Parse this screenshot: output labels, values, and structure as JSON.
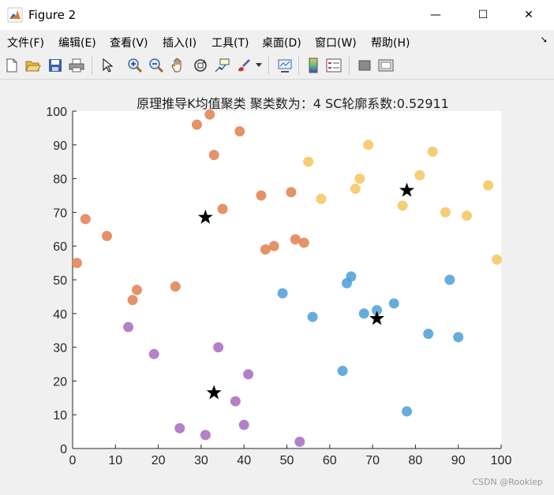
{
  "window": {
    "title": "Figure 2",
    "minimize": "—",
    "maximize": "☐",
    "close": "✕"
  },
  "menu": [
    "文件(F)",
    "编辑(E)",
    "查看(V)",
    "插入(I)",
    "工具(T)",
    "桌面(D)",
    "窗口(W)",
    "帮助(H)"
  ],
  "toolbar_icons": [
    "new-figure-icon",
    "open-file-icon",
    "save-icon",
    "print-icon",
    "pointer-icon",
    "zoom-in-icon",
    "zoom-out-icon",
    "pan-icon",
    "rotate-3d-icon",
    "data-cursor-icon",
    "brush-icon",
    "link-plot-icon",
    "colorbar-icon",
    "legend-icon",
    "hide-plot-tools-icon",
    "show-plot-tools-icon"
  ],
  "watermark": "CSDN @Rookiep",
  "colors": {
    "orange": "#e07f4f",
    "yellow": "#f2c75c",
    "blue": "#4a9fd6",
    "purple": "#a66bbd",
    "centroid": "#000000"
  },
  "chart_data": {
    "type": "scatter",
    "title": "原理推导K均值聚类  聚类数为：4  SC轮廓系数:0.52911",
    "xlim": [
      0,
      100
    ],
    "ylim": [
      0,
      100
    ],
    "xticks": [
      0,
      10,
      20,
      30,
      40,
      50,
      60,
      70,
      80,
      90,
      100
    ],
    "yticks": [
      0,
      10,
      20,
      30,
      40,
      50,
      60,
      70,
      80,
      90,
      100
    ],
    "grid": false,
    "series": [
      {
        "color": "#e07f4f",
        "points": [
          [
            32,
            99
          ],
          [
            29,
            96
          ],
          [
            39,
            94
          ],
          [
            33,
            87
          ],
          [
            51,
            76
          ],
          [
            44,
            75
          ],
          [
            35,
            71
          ],
          [
            3,
            68
          ],
          [
            8,
            63
          ],
          [
            52,
            62
          ],
          [
            54,
            61
          ],
          [
            47,
            60
          ],
          [
            45,
            59
          ],
          [
            1,
            55
          ],
          [
            24,
            48
          ],
          [
            15,
            47
          ],
          [
            14,
            44
          ]
        ]
      },
      {
        "color": "#f2c75c",
        "points": [
          [
            69,
            90
          ],
          [
            84,
            88
          ],
          [
            55,
            85
          ],
          [
            81,
            81
          ],
          [
            67,
            80
          ],
          [
            97,
            78
          ],
          [
            66,
            77
          ],
          [
            58,
            74
          ],
          [
            77,
            72
          ],
          [
            87,
            70
          ],
          [
            92,
            69
          ],
          [
            99,
            56
          ]
        ]
      },
      {
        "color": "#4a9fd6",
        "points": [
          [
            65,
            51
          ],
          [
            88,
            50
          ],
          [
            64,
            49
          ],
          [
            49,
            46
          ],
          [
            75,
            43
          ],
          [
            71,
            41
          ],
          [
            68,
            40
          ],
          [
            56,
            39
          ],
          [
            83,
            34
          ],
          [
            90,
            33
          ],
          [
            63,
            23
          ],
          [
            78,
            11
          ]
        ]
      },
      {
        "color": "#a66bbd",
        "points": [
          [
            13,
            36
          ],
          [
            34,
            30
          ],
          [
            19,
            28
          ],
          [
            41,
            22
          ],
          [
            38,
            14
          ],
          [
            40,
            7
          ],
          [
            25,
            6
          ],
          [
            31,
            4
          ],
          [
            53,
            2
          ]
        ]
      }
    ],
    "centroids": [
      [
        31,
        68.5
      ],
      [
        78,
        76.5
      ],
      [
        71,
        38.5
      ],
      [
        33,
        16.5
      ]
    ]
  }
}
